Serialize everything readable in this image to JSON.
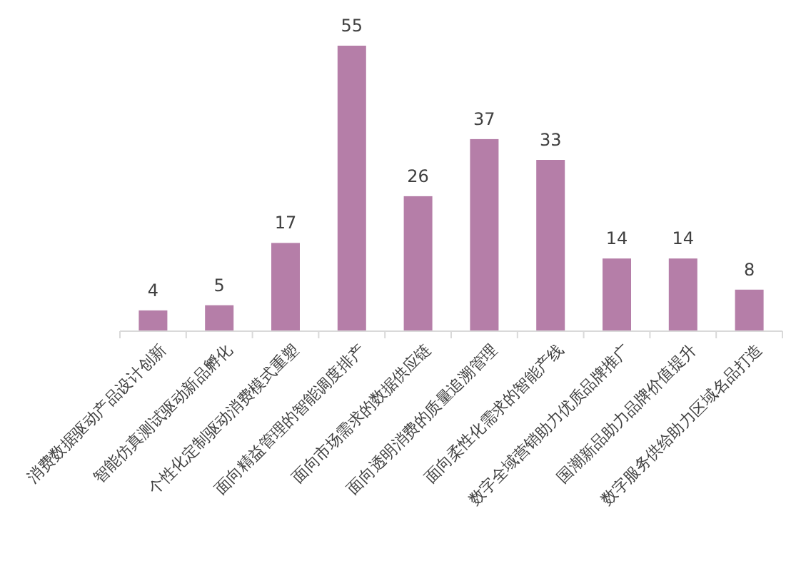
{
  "chart_data": {
    "type": "bar",
    "categories": [
      "消费数据驱动产品设计创新",
      "智能仿真测试驱动新品孵化",
      "个性化定制驱动消费模式重塑",
      "面向精益管理的智能调度排产",
      "面向市场需求的数据供应链",
      "面向透明消费的质量追溯管理",
      "面向柔性化需求的智能产线",
      "数字全域营销助力优质品牌推广",
      "国潮新品助力品牌价值提升",
      "数字服务供给助力区域名品打造"
    ],
    "values": [
      4,
      5,
      17,
      55,
      26,
      37,
      33,
      14,
      14,
      8
    ],
    "color": "#b57ea8",
    "data_labels": true
  }
}
